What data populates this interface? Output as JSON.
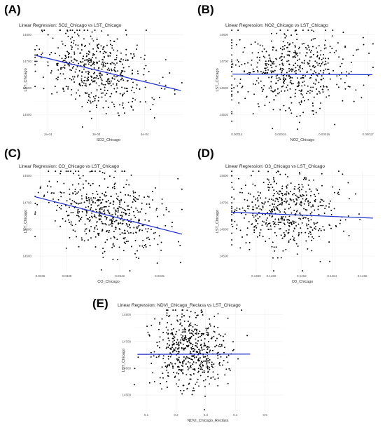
{
  "chart_data": [
    {
      "letter": "(A)",
      "type": "scatter",
      "title": "Linear Regression: SO2_Chicago vs LST_Chicago",
      "xlabel": "SO2_Chicago",
      "ylabel": "LST_Chicago",
      "xlim": [
        0.00017,
        0.00048
      ],
      "ylim": [
        14440,
        14820
      ],
      "xticks": [
        0.0002,
        0.0003,
        0.0004
      ],
      "xtick_labels": [
        "2e-04",
        "3e-04",
        "4e-04"
      ],
      "yticks": [
        14500,
        14600,
        14700,
        14800
      ],
      "regression": {
        "x": [
          0.000175,
          0.000475
        ],
        "y": [
          14722,
          14590
        ]
      },
      "n_points": 520,
      "cloud": {
        "cx": 0.0003,
        "sx": 5.5e-05,
        "cy": 14665,
        "sy": 70,
        "slope": -440000
      },
      "grid": true,
      "regression_color": "#1e2fc8"
    },
    {
      "letter": "(B)",
      "type": "scatter",
      "title": "Linear Regression: NO2_Chicago vs LST_Chicago",
      "xlabel": "NO2_Chicago",
      "ylabel": "LST_Chicago",
      "xlim": [
        0.0001385,
        0.0001715
      ],
      "ylim": [
        14440,
        14820
      ],
      "xticks": [
        0.00014,
        0.00015,
        0.00016,
        0.00017
      ],
      "xtick_labels": [
        "0.00014",
        "0.00015",
        "0.00016",
        "0.00017"
      ],
      "yticks": [
        14500,
        14600,
        14700,
        14800
      ],
      "regression": {
        "x": [
          0.000139,
          0.000171
        ],
        "y": [
          14652,
          14650
        ]
      },
      "n_points": 520,
      "cloud": {
        "cx": 0.000153,
        "sx": 7.5e-06,
        "cy": 14665,
        "sy": 75,
        "slope": 0
      },
      "grid": true,
      "regression_color": "#1e2fc8"
    },
    {
      "letter": "(C)",
      "type": "scatter",
      "title": "Linear Regression: CO_Chicago vs LST_Chicago",
      "xlabel": "CO_Chicago",
      "ylabel": "LST_Chicago",
      "xlim": [
        0.03355,
        0.03468
      ],
      "ylim": [
        14440,
        14820
      ],
      "xticks": [
        0.0336,
        0.0338,
        0.0342,
        0.0345
      ],
      "xtick_labels": [
        "0.0336",
        "0.0338",
        "0.0342",
        "0.0345"
      ],
      "yticks": [
        14500,
        14600,
        14700,
        14800
      ],
      "regression": {
        "x": [
          0.03356,
          0.03467
        ],
        "y": [
          14722,
          14582
        ]
      },
      "n_points": 520,
      "cloud": {
        "cx": 0.0341,
        "sx": 0.00022,
        "cy": 14660,
        "sy": 68,
        "slope": -125000
      },
      "grid": true,
      "regression_color": "#1e2fc8"
    },
    {
      "letter": "(D)",
      "type": "scatter",
      "title": "Linear Regression: O3_Chicago vs LST_Chicago",
      "xlabel": "O3_Chicago",
      "ylabel": "LST_Chicago",
      "xlim": [
        0.14573,
        0.14668
      ],
      "ylim": [
        14440,
        14820
      ],
      "xticks": [
        0.1459,
        0.146,
        0.1462,
        0.1464,
        0.1466
      ],
      "xtick_labels": [
        "0.1459",
        "0.1460",
        "0.1462",
        "0.1464",
        "0.1466"
      ],
      "yticks": [
        14500,
        14600,
        14700,
        14800
      ],
      "regression": {
        "x": [
          0.14574,
          0.14667
        ],
        "y": [
          14664,
          14642
        ]
      },
      "n_points": 520,
      "cloud": {
        "cx": 0.1461,
        "sx": 0.00018,
        "cy": 14668,
        "sy": 70,
        "slope": -23000
      },
      "grid": true,
      "regression_color": "#1e2fc8"
    },
    {
      "letter": "(E)",
      "type": "scatter",
      "title": "Linear Regression: NDVI_Chicago_Reclass vs LST_Chicago",
      "xlabel": "NDVI_Chicago_Reclass",
      "ylabel": "LST_Chicago",
      "xlim": [
        0.055,
        0.56
      ],
      "ylim": [
        14440,
        14820
      ],
      "xticks": [
        0.1,
        0.2,
        0.3,
        0.4,
        0.5
      ],
      "xtick_labels": [
        "0.1",
        "0.2",
        "0.3",
        "0.4",
        "0.5"
      ],
      "yticks": [
        14500,
        14600,
        14700,
        14800
      ],
      "regression": {
        "x": [
          0.07,
          0.45
        ],
        "y": [
          14652,
          14653
        ]
      },
      "n_points": 540,
      "cloud": {
        "cx": 0.25,
        "sx": 0.06,
        "cy": 14665,
        "sy": 72,
        "slope": 0
      },
      "grid": true,
      "regression_color": "#1e2fc8"
    }
  ]
}
